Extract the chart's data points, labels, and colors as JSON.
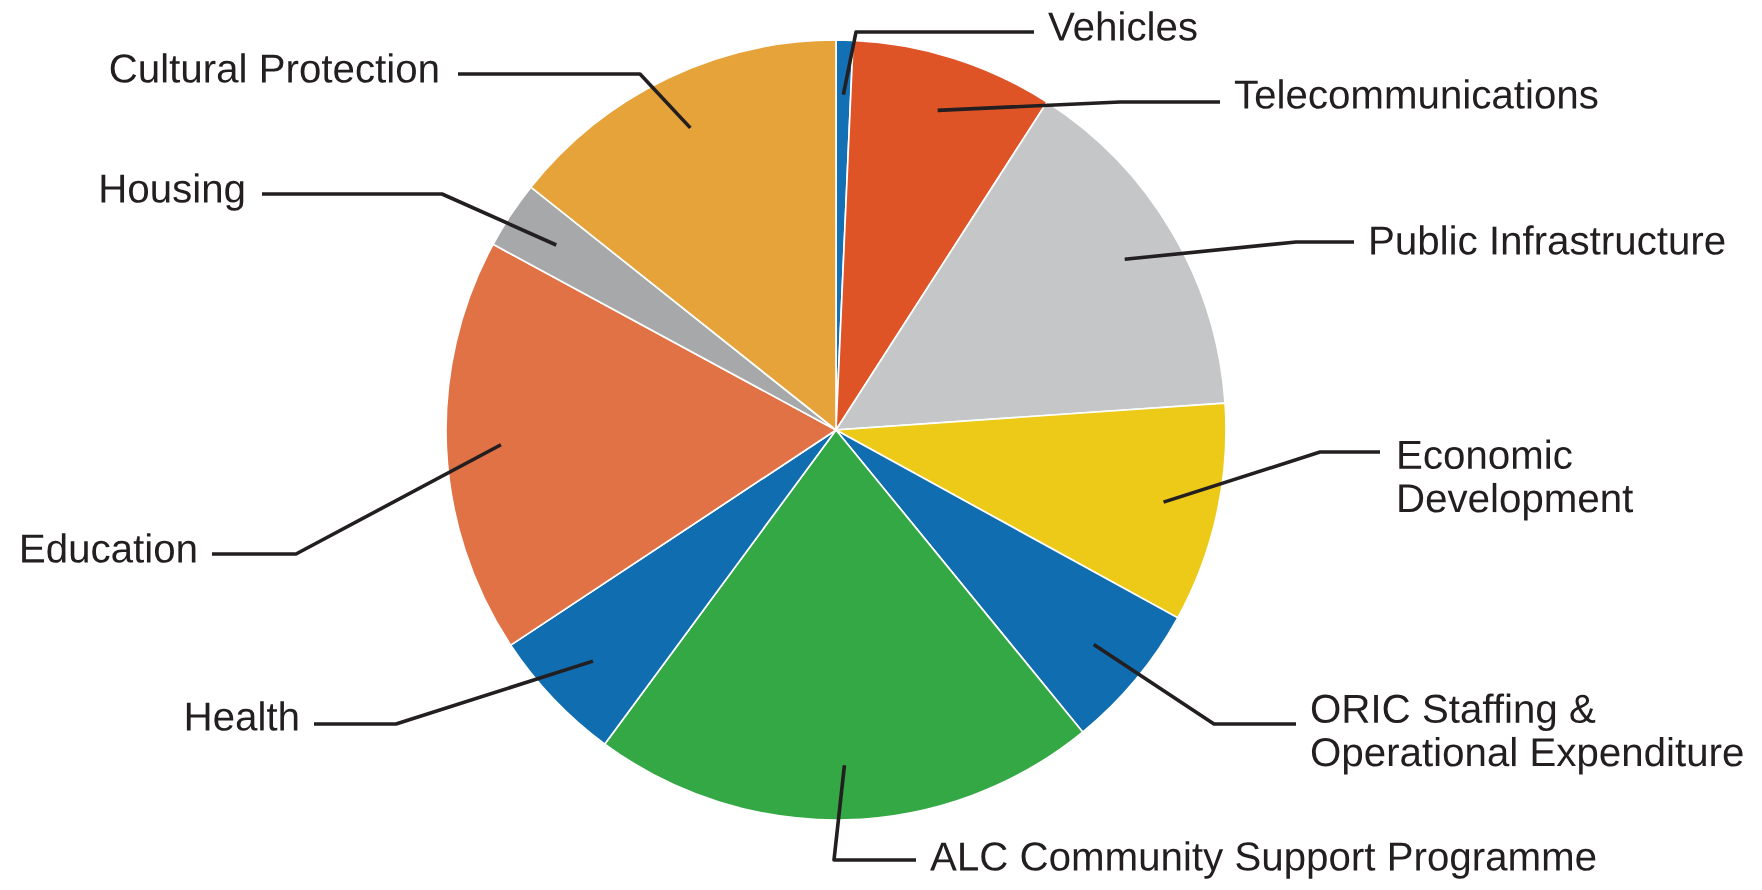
{
  "chart_data": {
    "type": "pie",
    "categories": [
      "Vehicles",
      "Telecommunications",
      "Public Infrastructure",
      "Economic\nDevelopment",
      "ORIC Staffing &\nOperational Expenditure",
      "ALC Community Support Programme",
      "Health",
      "Education",
      "Housing",
      "Cultural Protection"
    ],
    "values": [
      0.7,
      8.4,
      14.8,
      9.1,
      6.1,
      21.0,
      5.6,
      17.2,
      2.8,
      14.3
    ],
    "colors": [
      "#1470b4",
      "#de5426",
      "#c5c6c8",
      "#edca17",
      "#106db0",
      "#35a846",
      "#106db0",
      "#e07246",
      "#a7a8aa",
      "#e5a33a"
    ]
  }
}
